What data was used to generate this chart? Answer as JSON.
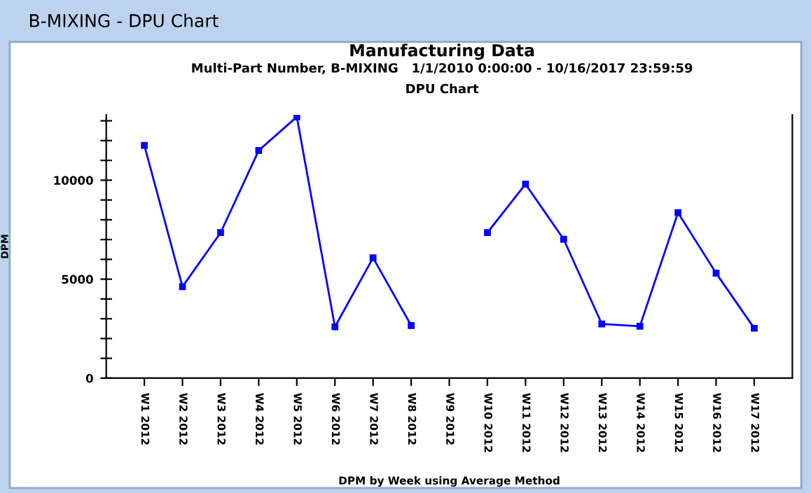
{
  "chart_data": {
    "type": "line",
    "title": "Manufacturing Data",
    "subtitle": "Multi-Part Number, B-MIXING   1/1/2010 0:00:00 - 10/16/2017 23:59:59\nDPU Chart",
    "annotations": [
      "B-MIXING - DPU Chart"
    ],
    "xlabel": "DPM by Week using Average Method",
    "ylabel": "DPM",
    "categories": [
      "W1 2012",
      "W2 2012",
      "W3 2012",
      "W4 2012",
      "W5 2012",
      "W6 2012",
      "W7 2012",
      "W8 2012",
      "W9 2012",
      "W10 2012",
      "W11 2012",
      "W12 2012",
      "W13 2012",
      "W14 2012",
      "W15 2012",
      "W16 2012",
      "W17 2012"
    ],
    "series": [
      {
        "color": "#0000ff",
        "values": [
          11760,
          4620,
          7350,
          11500,
          13200,
          2590,
          6080,
          2660,
          null,
          7350,
          9800,
          7020,
          2740,
          2620,
          8360,
          5300,
          2520
        ]
      }
    ],
    "ylim": [
      0,
      13300
    ],
    "yticks": [
      0,
      {
        "value": 1000,
        "label": null
      },
      {
        "value": 2000,
        "label": null
      },
      {
        "value": 3000,
        "label": null
      },
      {
        "value": 4000,
        "label": null
      },
      5000,
      {
        "value": 6000,
        "label": null
      },
      {
        "value": 7000,
        "label": null
      },
      {
        "value": 8000,
        "label": null
      },
      {
        "value": 9000,
        "label": null
      },
      10000,
      {
        "value": 11000,
        "label": null
      },
      {
        "value": 12000,
        "label": null
      },
      {
        "value": 13000,
        "label": null
      }
    ],
    "marker": "square",
    "line_style": "solid",
    "grid": false,
    "legend": false
  }
}
